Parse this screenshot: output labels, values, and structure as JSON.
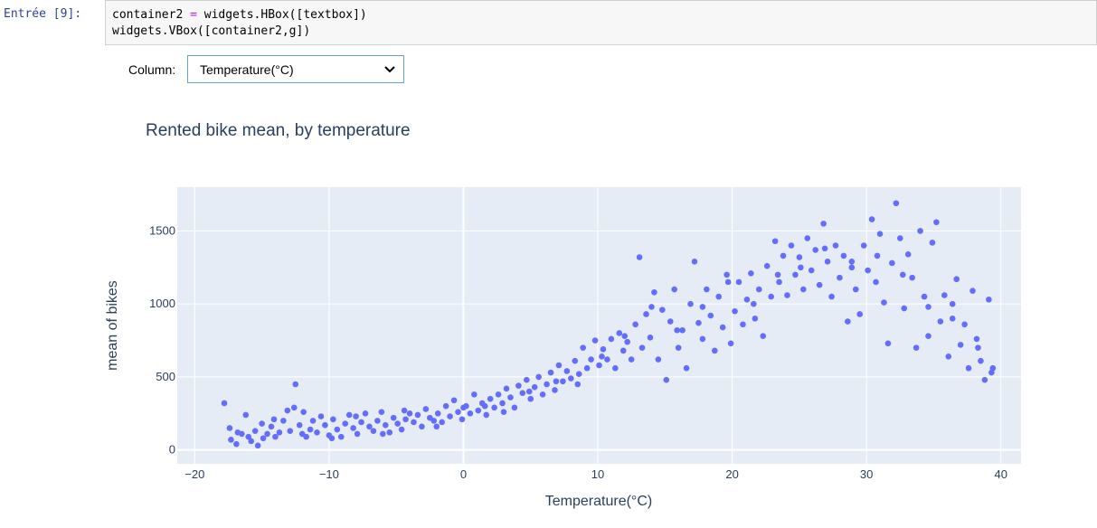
{
  "cell": {
    "prompt": "Entrée [9]:",
    "lines": [
      [
        "container2 ",
        "=",
        " widgets.HBox([textbox])"
      ],
      [
        "widgets.VBox([container2,g])",
        "",
        ""
      ]
    ]
  },
  "widget": {
    "label": "Column:",
    "selected": "Temperature(°C)"
  },
  "chart_data": {
    "type": "scatter",
    "title": "Rented bike mean, by temperature",
    "xlabel": "Temperature(°C)",
    "ylabel": "mean of bikes",
    "xlim": [
      -21.3,
      41.5
    ],
    "ylim": [
      -95,
      1800
    ],
    "xticks": [
      -20,
      -10,
      0,
      10,
      20,
      30,
      40
    ],
    "xtick_labels": [
      "−20",
      "−10",
      "0",
      "10",
      "20",
      "30",
      "40"
    ],
    "yticks": [
      0,
      500,
      1000,
      1500
    ],
    "ytick_labels": [
      "0",
      "500",
      "1000",
      "1500"
    ],
    "marker_color": "#636efa",
    "plot_bg": "#e5ecf6",
    "points": [
      [
        -17.8,
        320
      ],
      [
        -17.4,
        150
      ],
      [
        -17.3,
        70
      ],
      [
        -16.9,
        40
      ],
      [
        -16.5,
        110
      ],
      [
        -16.2,
        240
      ],
      [
        -16.0,
        90
      ],
      [
        -15.8,
        60
      ],
      [
        -15.5,
        130
      ],
      [
        -15.3,
        30
      ],
      [
        -15.0,
        180
      ],
      [
        -14.9,
        80
      ],
      [
        -14.6,
        110
      ],
      [
        -14.3,
        160
      ],
      [
        -14.0,
        90
      ],
      [
        -13.7,
        120
      ],
      [
        -13.4,
        200
      ],
      [
        -13.1,
        270
      ],
      [
        -12.9,
        130
      ],
      [
        -12.6,
        290
      ],
      [
        -12.5,
        450
      ],
      [
        -12.2,
        170
      ],
      [
        -12.0,
        110
      ],
      [
        -11.7,
        90
      ],
      [
        -11.4,
        140
      ],
      [
        -11.2,
        200
      ],
      [
        -10.9,
        120
      ],
      [
        -10.6,
        230
      ],
      [
        -10.3,
        170
      ],
      [
        -10.0,
        100
      ],
      [
        -9.7,
        210
      ],
      [
        -9.4,
        140
      ],
      [
        -9.1,
        90
      ],
      [
        -8.8,
        180
      ],
      [
        -8.5,
        240
      ],
      [
        -8.2,
        150
      ],
      [
        -7.9,
        110
      ],
      [
        -7.6,
        190
      ],
      [
        -7.3,
        250
      ],
      [
        -7.0,
        160
      ],
      [
        -6.7,
        130
      ],
      [
        -6.4,
        200
      ],
      [
        -6.1,
        260
      ],
      [
        -5.8,
        170
      ],
      [
        -5.5,
        120
      ],
      [
        -5.2,
        220
      ],
      [
        -4.9,
        180
      ],
      [
        -4.6,
        140
      ],
      [
        -4.3,
        210
      ],
      [
        -4.0,
        250
      ],
      [
        -3.7,
        190
      ],
      [
        -3.4,
        240
      ],
      [
        -3.1,
        160
      ],
      [
        -2.8,
        280
      ],
      [
        -2.5,
        220
      ],
      [
        -2.2,
        200
      ],
      [
        -1.9,
        250
      ],
      [
        -1.6,
        190
      ],
      [
        -1.3,
        300
      ],
      [
        -1.0,
        230
      ],
      [
        -0.7,
        340
      ],
      [
        -0.4,
        260
      ],
      [
        -0.1,
        210
      ],
      [
        0.2,
        300
      ],
      [
        0.5,
        250
      ],
      [
        0.8,
        380
      ],
      [
        1.1,
        270
      ],
      [
        1.4,
        320
      ],
      [
        1.7,
        240
      ],
      [
        2.0,
        350
      ],
      [
        2.3,
        290
      ],
      [
        2.6,
        380
      ],
      [
        2.9,
        320
      ],
      [
        3.2,
        420
      ],
      [
        3.5,
        360
      ],
      [
        3.8,
        290
      ],
      [
        4.1,
        440
      ],
      [
        4.4,
        390
      ],
      [
        4.7,
        480
      ],
      [
        5.0,
        350
      ],
      [
        5.3,
        430
      ],
      [
        5.6,
        500
      ],
      [
        5.9,
        380
      ],
      [
        6.2,
        450
      ],
      [
        6.5,
        530
      ],
      [
        6.8,
        410
      ],
      [
        7.1,
        580
      ],
      [
        7.4,
        470
      ],
      [
        7.7,
        540
      ],
      [
        8.0,
        490
      ],
      [
        8.3,
        610
      ],
      [
        8.6,
        520
      ],
      [
        8.9,
        700
      ],
      [
        9.2,
        560
      ],
      [
        9.5,
        620
      ],
      [
        9.8,
        750
      ],
      [
        10.1,
        580
      ],
      [
        10.4,
        690
      ],
      [
        10.7,
        620
      ],
      [
        11.0,
        760
      ],
      [
        11.3,
        560
      ],
      [
        11.6,
        800
      ],
      [
        11.9,
        680
      ],
      [
        12.2,
        740
      ],
      [
        12.5,
        620
      ],
      [
        12.8,
        860
      ],
      [
        13.1,
        1320
      ],
      [
        13.3,
        700
      ],
      [
        13.6,
        930
      ],
      [
        13.9,
        770
      ],
      [
        14.2,
        1080
      ],
      [
        14.5,
        620
      ],
      [
        14.8,
        960
      ],
      [
        15.1,
        480
      ],
      [
        15.4,
        880
      ],
      [
        15.7,
        1100
      ],
      [
        16.0,
        700
      ],
      [
        16.3,
        820
      ],
      [
        16.6,
        560
      ],
      [
        16.9,
        1000
      ],
      [
        17.2,
        1290
      ],
      [
        17.5,
        870
      ],
      [
        17.8,
        760
      ],
      [
        18.1,
        1100
      ],
      [
        18.4,
        920
      ],
      [
        18.7,
        680
      ],
      [
        19.0,
        1050
      ],
      [
        19.3,
        840
      ],
      [
        19.6,
        1200
      ],
      [
        19.9,
        730
      ],
      [
        20.2,
        950
      ],
      [
        20.5,
        1150
      ],
      [
        20.8,
        860
      ],
      [
        21.1,
        1030
      ],
      [
        21.4,
        1210
      ],
      [
        21.7,
        900
      ],
      [
        22.0,
        1100
      ],
      [
        22.3,
        780
      ],
      [
        22.6,
        1260
      ],
      [
        22.9,
        1050
      ],
      [
        23.2,
        1430
      ],
      [
        23.5,
        1150
      ],
      [
        23.8,
        1330
      ],
      [
        24.1,
        1060
      ],
      [
        24.4,
        1400
      ],
      [
        24.7,
        1200
      ],
      [
        25.0,
        1320
      ],
      [
        25.3,
        1100
      ],
      [
        25.6,
        1450
      ],
      [
        25.9,
        1230
      ],
      [
        26.2,
        1370
      ],
      [
        26.5,
        1130
      ],
      [
        26.8,
        1550
      ],
      [
        27.1,
        1290
      ],
      [
        27.4,
        1050
      ],
      [
        27.7,
        1400
      ],
      [
        28.0,
        1180
      ],
      [
        28.3,
        1330
      ],
      [
        28.6,
        880
      ],
      [
        28.9,
        1250
      ],
      [
        29.2,
        1100
      ],
      [
        29.5,
        930
      ],
      [
        29.8,
        1400
      ],
      [
        30.1,
        1230
      ],
      [
        30.4,
        1580
      ],
      [
        30.7,
        1150
      ],
      [
        31.0,
        1480
      ],
      [
        31.3,
        1010
      ],
      [
        31.6,
        730
      ],
      [
        31.9,
        1280
      ],
      [
        32.2,
        1690
      ],
      [
        32.5,
        1450
      ],
      [
        32.8,
        970
      ],
      [
        33.1,
        1340
      ],
      [
        33.4,
        1180
      ],
      [
        33.7,
        700
      ],
      [
        34.0,
        1500
      ],
      [
        34.3,
        1050
      ],
      [
        34.6,
        780
      ],
      [
        34.9,
        1420
      ],
      [
        35.2,
        1560
      ],
      [
        35.5,
        880
      ],
      [
        35.8,
        1060
      ],
      [
        36.1,
        640
      ],
      [
        36.4,
        1000
      ],
      [
        36.7,
        1170
      ],
      [
        37.0,
        720
      ],
      [
        37.3,
        860
      ],
      [
        37.6,
        560
      ],
      [
        37.9,
        1090
      ],
      [
        38.2,
        760
      ],
      [
        38.5,
        610
      ],
      [
        38.8,
        480
      ],
      [
        39.1,
        1030
      ],
      [
        39.3,
        530
      ],
      [
        39.4,
        560
      ],
      [
        -16.8,
        120
      ],
      [
        -14.1,
        210
      ],
      [
        -11.9,
        260
      ],
      [
        -9.8,
        80
      ],
      [
        -8.0,
        230
      ],
      [
        -6.0,
        110
      ],
      [
        -4.4,
        270
      ],
      [
        -2.0,
        160
      ],
      [
        0.0,
        290
      ],
      [
        1.6,
        300
      ],
      [
        3.0,
        260
      ],
      [
        4.9,
        400
      ],
      [
        6.9,
        470
      ],
      [
        8.5,
        450
      ],
      [
        10.3,
        640
      ],
      [
        12.0,
        780
      ],
      [
        14.0,
        980
      ],
      [
        15.9,
        820
      ],
      [
        17.8,
        980
      ],
      [
        19.7,
        1150
      ],
      [
        21.6,
        1000
      ],
      [
        23.4,
        1200
      ],
      [
        25.1,
        1250
      ],
      [
        26.9,
        1380
      ],
      [
        28.9,
        1290
      ],
      [
        30.8,
        1330
      ],
      [
        32.7,
        1200
      ],
      [
        34.6,
        980
      ],
      [
        36.4,
        900
      ],
      [
        38.3,
        700
      ]
    ]
  }
}
